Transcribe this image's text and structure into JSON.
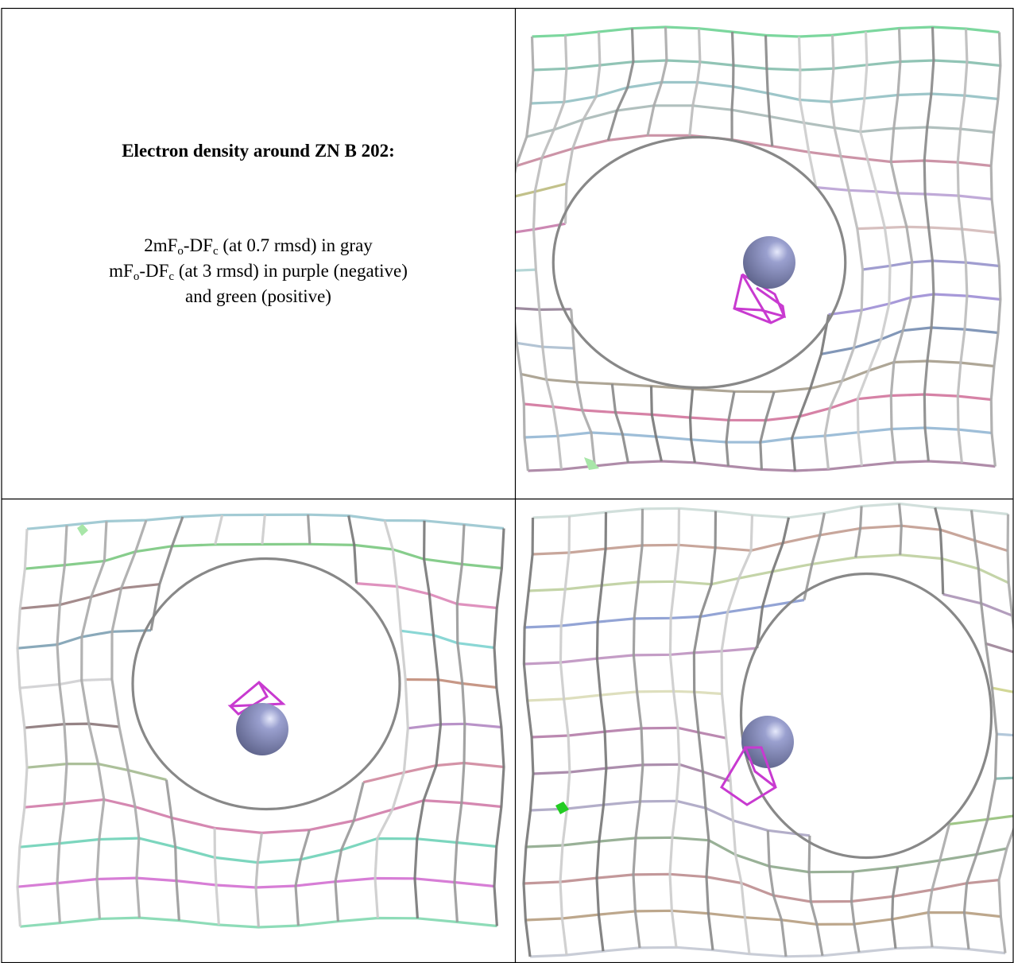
{
  "caption": {
    "title": "Electron density around ZN B 202:",
    "lines": [
      [
        "2mF",
        "o",
        "-DF",
        "c",
        " (at 0.7 rmsd) in gray"
      ],
      [
        "mF",
        "o",
        "-DF",
        "c",
        " (at 3 rmsd) in purple (negative)"
      ],
      [
        "and green (positive)"
      ]
    ]
  }
}
